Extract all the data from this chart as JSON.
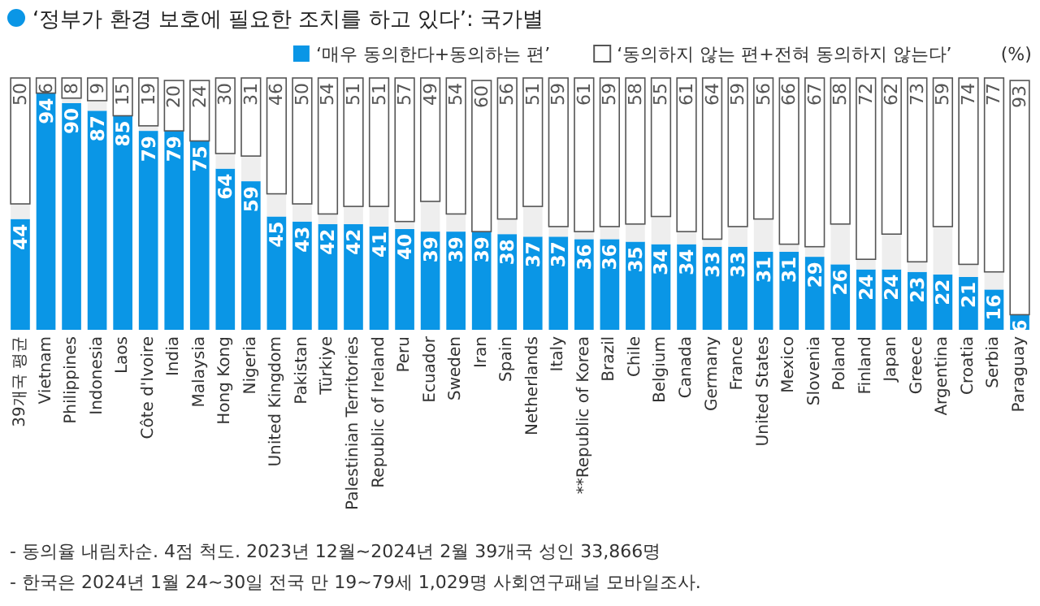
{
  "chart_data": {
    "type": "bar",
    "stacked": true,
    "title": "‘정부가 환경 보호에 필요한 조치를 하고 있다’: 국가별",
    "ylabel": "(%)",
    "legend": "top right",
    "ylim": [
      0,
      100
    ],
    "tick_labels": "x",
    "categories": [
      "39개국 평균",
      "Vietnam",
      "Philippines",
      "Indonesia",
      "Laos",
      "Côte d'Ivoire",
      "India",
      "Malaysia",
      "Hong Kong",
      "Nigeria",
      "United Kingdom",
      "Pakistan",
      "Türkiye",
      "Palestinian Territories",
      "Republic of Ireland",
      "Peru",
      "Ecuador",
      "Sweden",
      "Iran",
      "Spain",
      "Netherlands",
      "Italy",
      "**Republic of Korea",
      "Brazil",
      "Chile",
      "Belgium",
      "Canada",
      "Germany",
      "France",
      "United States",
      "Mexico",
      "Slovenia",
      "Poland",
      "Finland",
      "Japan",
      "Greece",
      "Argentina",
      "Croatia",
      "Serbia",
      "Paraguay"
    ],
    "series": [
      {
        "name": "‘매우 동의한다+동의하는 편’",
        "color": "#0a96e6",
        "values": [
          44,
          94,
          90,
          87,
          85,
          79,
          79,
          75,
          64,
          59,
          45,
          43,
          42,
          42,
          41,
          40,
          39,
          39,
          39,
          38,
          37,
          37,
          36,
          36,
          35,
          34,
          34,
          33,
          33,
          31,
          31,
          29,
          26,
          24,
          24,
          23,
          22,
          21,
          16,
          6
        ],
        "value_labels": [
          "44",
          "94",
          "90",
          "87",
          "85",
          "79",
          "79",
          "75",
          "64",
          "59",
          "45",
          "43",
          "42",
          "42",
          "41",
          "40",
          "39",
          "39",
          "39",
          "38",
          "37",
          "37",
          "36",
          "36",
          "35",
          "34",
          "34",
          "33",
          "33",
          "31",
          "31",
          "29",
          "26",
          "24",
          "24",
          "23",
          "22",
          "21",
          "16",
          "6"
        ]
      },
      {
        "color": "#eeeeee",
        "values": [
          6,
          0,
          2,
          4,
          0,
          2,
          null,
          null,
          6,
          10,
          9,
          7,
          4,
          7,
          8,
          3,
          12,
          7,
          null,
          6,
          12,
          4,
          3,
          5,
          7,
          11,
          5,
          3,
          8,
          13,
          3,
          4,
          16,
          4,
          14,
          4,
          19,
          5,
          7,
          null
        ]
      },
      {
        "name": "‘동의하지 않는 편+전혀 동의하지 않는다’",
        "color": "#ffffff",
        "values": [
          50,
          6,
          8,
          9,
          15,
          19,
          20,
          24,
          30,
          31,
          46,
          50,
          54,
          51,
          51,
          57,
          49,
          54,
          60,
          56,
          51,
          59,
          61,
          59,
          58,
          55,
          61,
          64,
          59,
          56,
          66,
          67,
          58,
          72,
          62,
          73,
          59,
          74,
          77,
          93
        ],
        "value_labels": [
          "50",
          "6",
          "8",
          "9",
          "15",
          "19",
          "20",
          "24",
          "30",
          "31",
          "46",
          "50",
          "54",
          "51",
          "51",
          "57",
          "49",
          "54",
          "60",
          "56",
          "51",
          "59",
          "61",
          "59",
          "58",
          "55",
          "61",
          "64",
          "59",
          "56",
          "66",
          "67",
          "58",
          "72",
          "62",
          "73",
          "59",
          "74",
          "77",
          "93"
        ]
      }
    ],
    "annotations": [
      "- 동의율 내림차순. 4점 척도. 2023년 12월~2024년 2월 39개국 성인 33,866명",
      "- 한국은 2024년 1월 24~30일 전국 만 19~79세 1,029명 사회연구패널 모바일조사."
    ]
  }
}
